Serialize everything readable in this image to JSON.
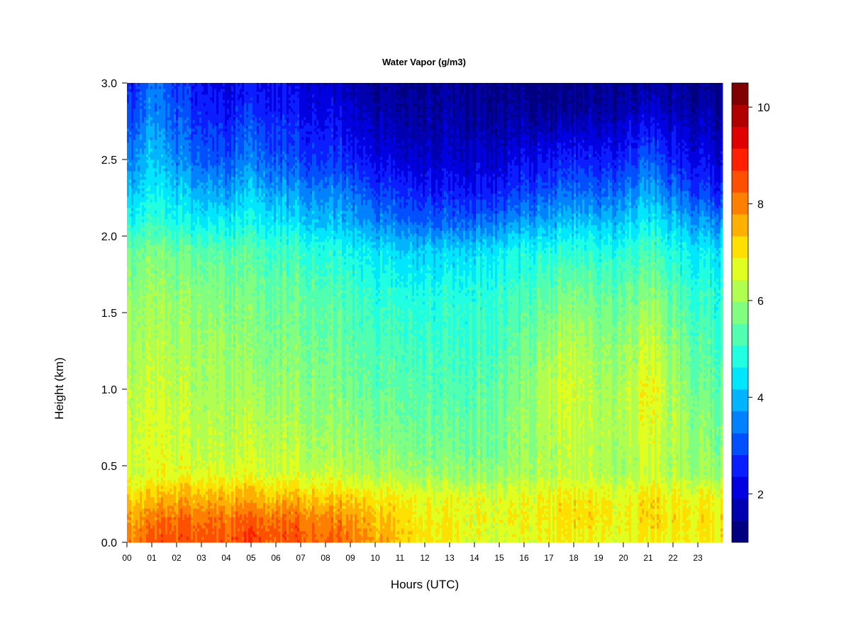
{
  "chart_data": {
    "type": "heatmap",
    "title": "Water Vapor (g/m3)",
    "xlabel": "Hours (UTC)",
    "ylabel": "Height (km)",
    "x_ticks": [
      "00",
      "01",
      "02",
      "03",
      "04",
      "05",
      "06",
      "07",
      "08",
      "09",
      "10",
      "11",
      "12",
      "13",
      "14",
      "15",
      "16",
      "17",
      "18",
      "19",
      "20",
      "21",
      "22",
      "23"
    ],
    "x_range": [
      0,
      24
    ],
    "y_ticks": [
      "0.0",
      "0.5",
      "1.0",
      "1.5",
      "2.0",
      "2.5",
      "3.0"
    ],
    "y_range": [
      0,
      3.0
    ],
    "colorbar": {
      "ticks": [
        "2",
        "4",
        "6",
        "8",
        "10"
      ],
      "tick_values": [
        2,
        4,
        6,
        8,
        10
      ],
      "range": [
        1.0,
        10.5
      ],
      "levels": 19,
      "colors": [
        "#000080",
        "#0000b0",
        "#0000e0",
        "#0a1eff",
        "#0050ff",
        "#0082ff",
        "#00b4ff",
        "#00e6ff",
        "#20ffe0",
        "#50ffb0",
        "#80ff80",
        "#b0ff50",
        "#e0ff20",
        "#ffe000",
        "#ffb000",
        "#ff8000",
        "#ff5000",
        "#ff2000",
        "#e00000",
        "#b00000",
        "#800000"
      ]
    },
    "height_levels_km": [
      0.0,
      0.15,
      0.3,
      0.45,
      0.6,
      0.8,
      1.0,
      1.3,
      1.6,
      1.9,
      2.1,
      2.3,
      2.5,
      2.7,
      2.85,
      3.0
    ],
    "hours_utc": [
      0,
      1,
      2,
      3,
      4,
      5,
      6,
      7,
      8,
      9,
      10,
      11,
      12,
      13,
      14,
      15,
      16,
      17,
      18,
      19,
      20,
      21,
      22,
      23,
      24
    ],
    "values_g_m3": [
      [
        7.8,
        8.3,
        8.5,
        8.4,
        8.4,
        8.6,
        8.5,
        8.5,
        8.3,
        8.1,
        7.8,
        7.4,
        7.0,
        6.8,
        6.6,
        6.5,
        6.6,
        6.8,
        6.9,
        6.7,
        6.6,
        6.9,
        6.8,
        6.9,
        7.0
      ],
      [
        7.6,
        8.0,
        8.2,
        8.1,
        8.1,
        8.3,
        8.2,
        8.2,
        8.0,
        7.8,
        7.5,
        7.2,
        6.9,
        6.8,
        6.7,
        6.7,
        6.8,
        7.0,
        7.1,
        6.9,
        6.8,
        7.1,
        7.0,
        7.0,
        7.0
      ],
      [
        7.0,
        7.3,
        7.5,
        7.4,
        7.4,
        7.5,
        7.4,
        7.4,
        7.3,
        7.2,
        7.0,
        6.9,
        6.7,
        6.6,
        6.6,
        6.6,
        6.7,
        6.9,
        7.0,
        6.8,
        6.7,
        7.0,
        6.8,
        6.8,
        6.8
      ],
      [
        6.4,
        6.6,
        6.7,
        6.6,
        6.6,
        6.6,
        6.6,
        6.5,
        6.5,
        6.3,
        6.2,
        6.1,
        6.0,
        5.9,
        5.9,
        5.9,
        6.1,
        6.3,
        6.4,
        6.2,
        6.1,
        6.4,
        6.2,
        6.0,
        6.0
      ],
      [
        6.4,
        6.6,
        6.5,
        6.3,
        6.3,
        6.4,
        6.4,
        6.3,
        6.2,
        6.0,
        5.9,
        5.8,
        5.7,
        5.6,
        5.6,
        5.7,
        5.9,
        6.2,
        6.4,
        6.1,
        6.1,
        6.5,
        6.2,
        5.9,
        5.8
      ],
      [
        6.3,
        6.5,
        6.4,
        6.2,
        6.2,
        6.2,
        6.2,
        6.1,
        6.0,
        5.8,
        5.7,
        5.6,
        5.5,
        5.4,
        5.5,
        5.6,
        5.9,
        6.3,
        6.5,
        6.1,
        6.2,
        6.7,
        6.2,
        5.8,
        5.6
      ],
      [
        6.2,
        6.4,
        6.3,
        6.1,
        6.1,
        6.0,
        6.0,
        5.9,
        5.8,
        5.6,
        5.5,
        5.4,
        5.3,
        5.2,
        5.3,
        5.5,
        5.8,
        6.4,
        6.6,
        6.0,
        6.2,
        6.8,
        6.1,
        5.6,
        5.4
      ],
      [
        6.0,
        6.2,
        6.1,
        6.0,
        5.9,
        5.8,
        5.8,
        5.7,
        5.6,
        5.4,
        5.3,
        5.2,
        5.1,
        5.0,
        5.1,
        5.2,
        5.5,
        6.0,
        6.3,
        5.8,
        5.9,
        6.4,
        5.8,
        5.3,
        5.1
      ],
      [
        5.8,
        6.0,
        5.9,
        5.8,
        5.7,
        5.6,
        5.6,
        5.5,
        5.4,
        5.2,
        5.0,
        4.9,
        4.8,
        4.8,
        4.9,
        5.0,
        5.2,
        5.5,
        5.8,
        5.4,
        5.5,
        5.9,
        5.4,
        5.0,
        4.9
      ],
      [
        5.4,
        5.7,
        5.5,
        5.4,
        5.3,
        5.3,
        5.2,
        5.1,
        4.9,
        4.7,
        4.5,
        4.3,
        4.2,
        4.2,
        4.3,
        4.5,
        4.7,
        4.9,
        5.0,
        4.8,
        4.9,
        5.2,
        4.8,
        4.5,
        4.4
      ],
      [
        4.6,
        5.0,
        4.7,
        4.5,
        4.5,
        4.6,
        4.5,
        4.3,
        4.1,
        3.9,
        3.6,
        3.3,
        3.1,
        3.1,
        3.2,
        3.4,
        3.7,
        3.9,
        4.1,
        3.9,
        4.1,
        4.5,
        4.1,
        3.7,
        3.5
      ],
      [
        3.9,
        4.5,
        4.2,
        3.8,
        3.7,
        4.1,
        3.8,
        3.6,
        3.5,
        3.3,
        2.9,
        2.7,
        2.5,
        2.4,
        2.4,
        2.5,
        2.8,
        3.1,
        3.3,
        3.0,
        3.3,
        3.8,
        3.3,
        2.8,
        2.6
      ],
      [
        3.3,
        4.1,
        3.6,
        3.1,
        3.0,
        3.4,
        3.1,
        2.9,
        2.8,
        2.6,
        2.3,
        2.1,
        1.9,
        1.9,
        1.9,
        2.0,
        2.2,
        2.4,
        2.6,
        2.4,
        2.6,
        3.1,
        2.6,
        2.2,
        2.1
      ],
      [
        2.9,
        3.7,
        3.2,
        2.8,
        2.6,
        3.0,
        2.8,
        2.6,
        2.5,
        2.2,
        1.9,
        1.7,
        1.6,
        1.6,
        1.6,
        1.6,
        1.7,
        1.8,
        1.9,
        1.8,
        2.0,
        2.4,
        2.1,
        1.8,
        1.7
      ],
      [
        2.6,
        3.5,
        3.0,
        2.5,
        2.3,
        2.6,
        2.5,
        2.3,
        2.2,
        1.9,
        1.6,
        1.5,
        1.5,
        1.5,
        1.4,
        1.4,
        1.3,
        1.3,
        1.4,
        1.4,
        1.6,
        1.8,
        1.7,
        1.5,
        1.5
      ],
      [
        2.4,
        3.3,
        2.8,
        2.3,
        2.1,
        2.3,
        2.3,
        2.1,
        2.0,
        1.7,
        1.5,
        1.4,
        1.4,
        1.4,
        1.3,
        1.3,
        1.2,
        1.2,
        1.3,
        1.3,
        1.4,
        1.5,
        1.5,
        1.3,
        1.3
      ]
    ]
  }
}
